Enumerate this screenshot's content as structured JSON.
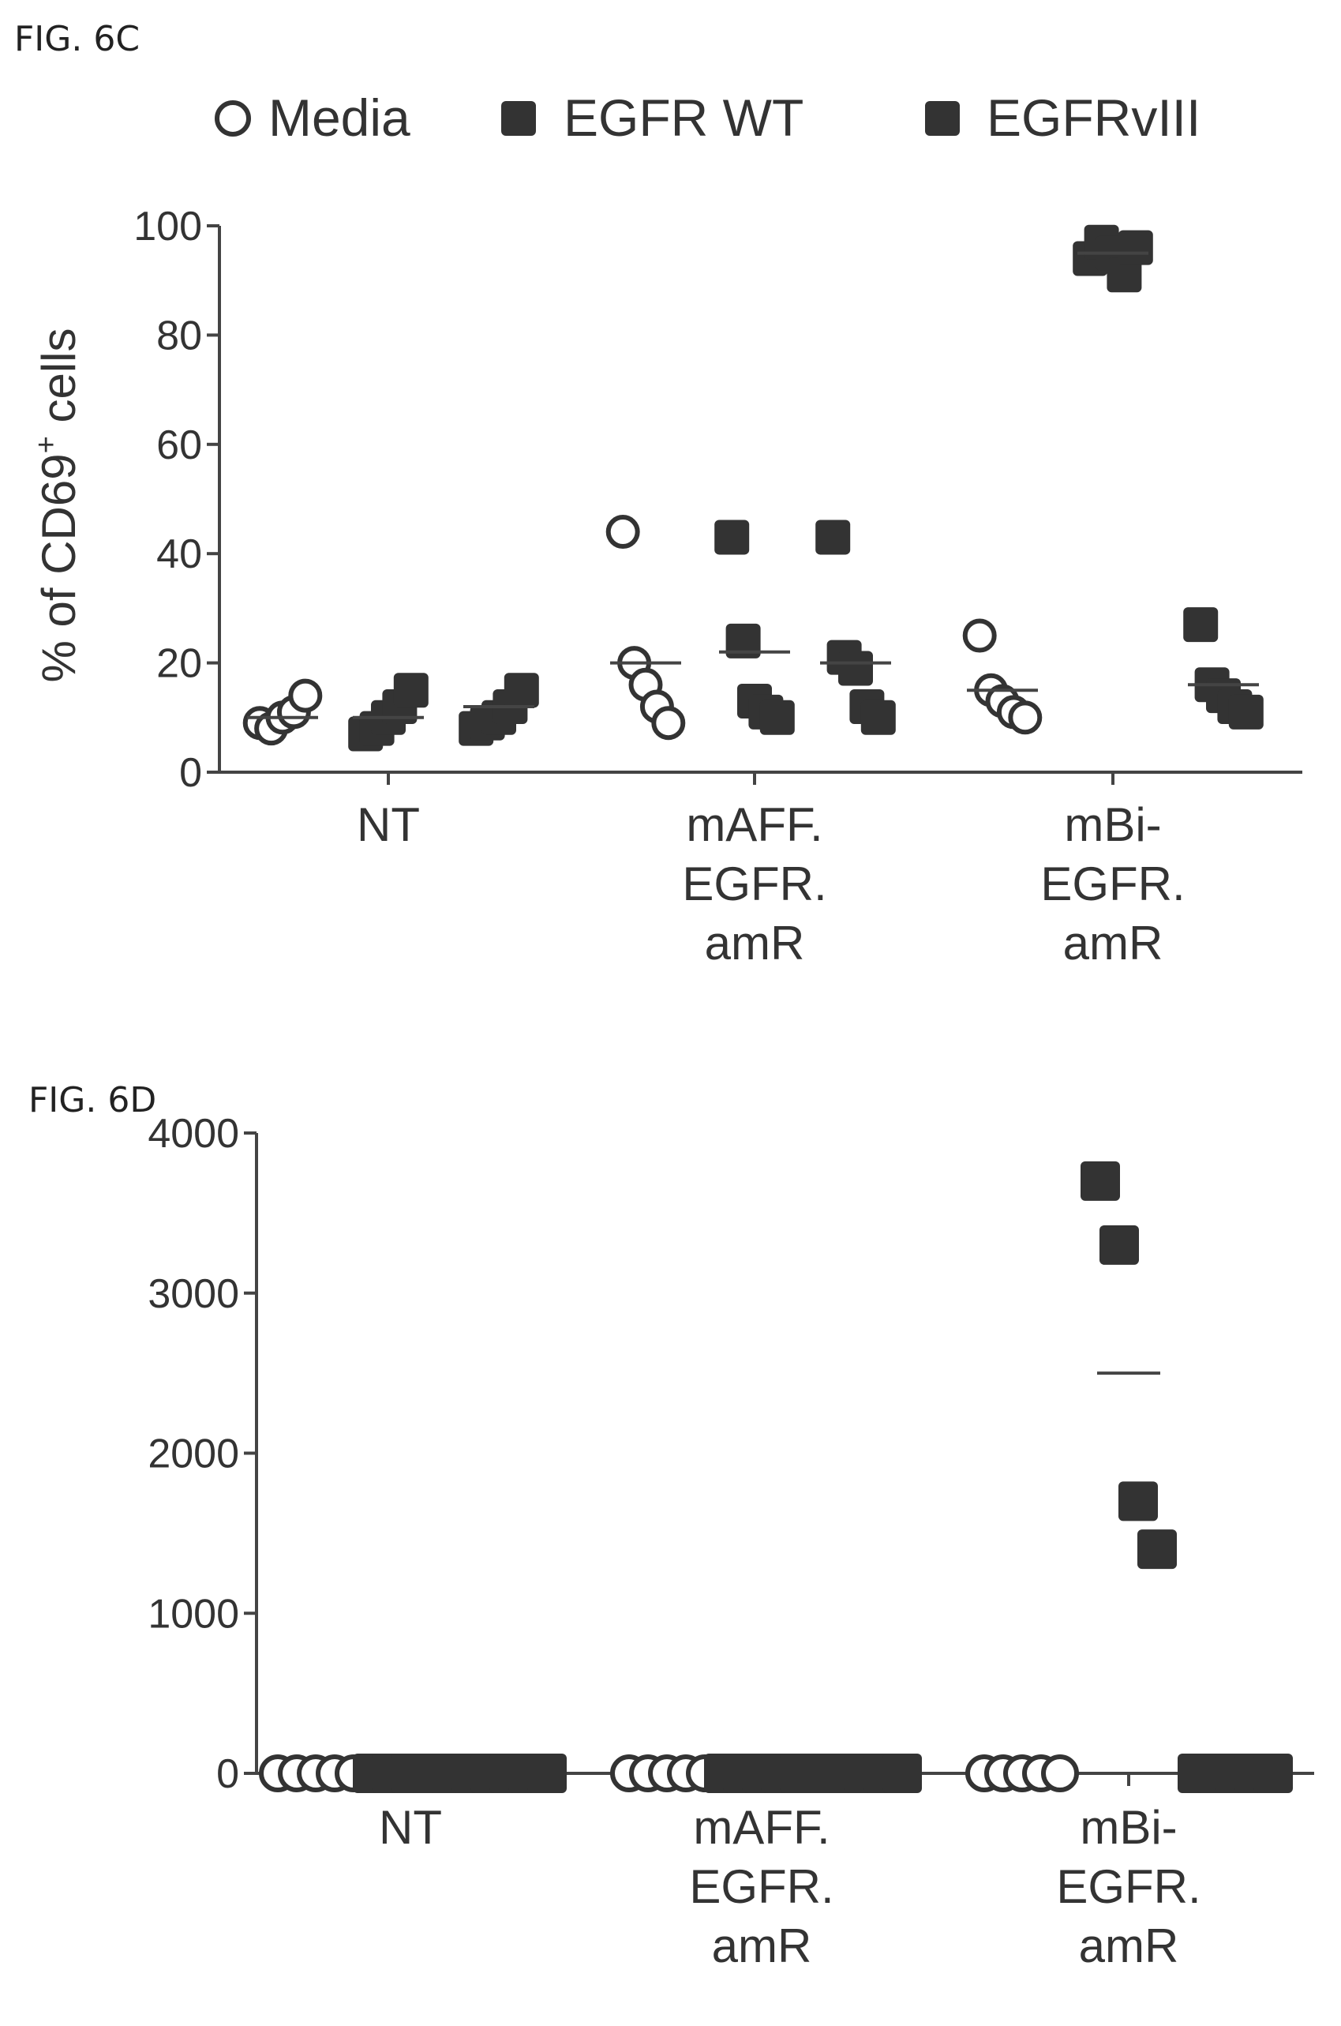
{
  "figures": [
    {
      "label": "FIG. 6C"
    },
    {
      "label": "FIG. 6D"
    }
  ],
  "legend": [
    {
      "name": "Media",
      "marker": "circle-open"
    },
    {
      "name": "EGFR WT",
      "marker": "square-filled"
    },
    {
      "name": "EGFRvIII",
      "marker": "square-filled"
    }
  ],
  "colors": {
    "marker": "#333333",
    "axis": "#444444",
    "text": "#333333"
  },
  "chart_data": [
    {
      "type": "scatter",
      "title": "",
      "ylabel": "% of CD69+ cells",
      "ylabel_main": "% of CD69",
      "ylabel_sup": "+",
      "ylabel_end": " cells",
      "ylim": [
        0,
        100
      ],
      "yticks": [
        0,
        20,
        40,
        60,
        80,
        100
      ],
      "categories": [
        "NT",
        "mAFF. EGFR. amR",
        "mBi- EGFR. amR"
      ],
      "category_lines": [
        [
          "NT"
        ],
        [
          "mAFF.",
          "EGFR.",
          "amR"
        ],
        [
          "mBi-",
          "EGFR.",
          "amR"
        ]
      ],
      "series": [
        {
          "name": "Media",
          "marker": "circle-open",
          "values": [
            [
              9,
              8,
              10,
              11,
              14
            ],
            [
              44,
              20,
              16,
              12,
              9
            ],
            [
              25,
              15,
              13,
              11,
              10
            ]
          ],
          "means": [
            10,
            20,
            15
          ]
        },
        {
          "name": "EGFR WT",
          "marker": "square-filled",
          "values": [
            [
              7,
              8,
              10,
              12,
              15
            ],
            [
              43,
              24,
              13,
              11,
              10
            ],
            [
              94,
              97,
              95,
              91,
              96
            ]
          ],
          "means": [
            10,
            22,
            95
          ]
        },
        {
          "name": "EGFRvIII",
          "marker": "square-filled",
          "values": [
            [
              8,
              9,
              10,
              12,
              15
            ],
            [
              43,
              21,
              19,
              12,
              10
            ],
            [
              27,
              16,
              14,
              12,
              11
            ]
          ],
          "means": [
            12,
            20,
            16
          ]
        }
      ]
    },
    {
      "type": "scatter",
      "title": "",
      "ylabel": "",
      "ylim": [
        0,
        4000
      ],
      "yticks": [
        0,
        1000,
        2000,
        3000,
        4000
      ],
      "categories": [
        "NT",
        "mAFF. EGFR. amR",
        "mBi- EGFR. amR"
      ],
      "category_lines": [
        [
          "NT"
        ],
        [
          "mAFF.",
          "EGFR.",
          "amR"
        ],
        [
          "mBi-",
          "EGFR.",
          "amR"
        ]
      ],
      "series": [
        {
          "name": "Media",
          "marker": "circle-open",
          "values": [
            [
              0,
              0,
              0,
              0,
              0
            ],
            [
              0,
              0,
              0,
              0,
              0
            ],
            [
              0,
              0,
              0,
              0,
              0
            ]
          ],
          "means": [
            0,
            0,
            0
          ]
        },
        {
          "name": "EGFR WT",
          "marker": "square-filled",
          "values": [
            [
              0,
              0,
              0,
              0,
              0
            ],
            [
              0,
              0,
              0,
              0,
              0
            ],
            [
              3700,
              3300,
              1700,
              1400
            ]
          ],
          "means": [
            0,
            0,
            2500
          ]
        },
        {
          "name": "EGFRvIII",
          "marker": "square-filled",
          "values": [
            [
              0,
              0,
              0,
              0,
              0
            ],
            [
              0,
              0,
              0,
              0,
              0
            ],
            [
              0,
              0,
              0,
              0,
              0
            ]
          ],
          "means": [
            0,
            0,
            0
          ]
        }
      ]
    }
  ]
}
